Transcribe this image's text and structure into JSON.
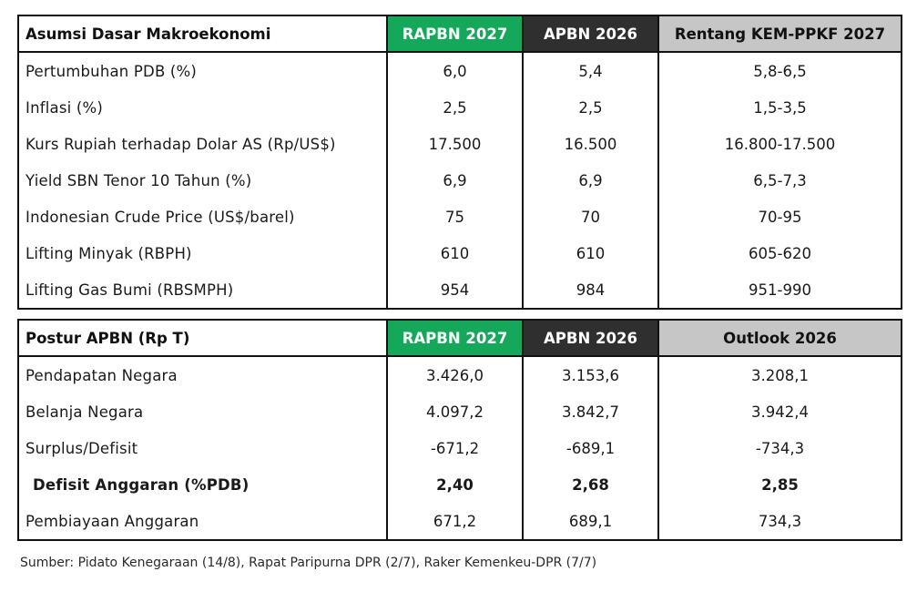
{
  "macro_assumptions": {
    "header": {
      "label": "Asumsi Dasar Makroekonomi",
      "col1": "RAPBN 2027",
      "col2": "APBN 2026",
      "col3": "Rentang KEM-PPKF 2027"
    },
    "rows": [
      {
        "label": "Pertumbuhan PDB (%)",
        "rapbn2027": "6,0",
        "apbn2026": "5,4",
        "range2027": "5,8-6,5"
      },
      {
        "label": "Inflasi (%)",
        "rapbn2027": "2,5",
        "apbn2026": "2,5",
        "range2027": "1,5-3,5"
      },
      {
        "label": "Kurs Rupiah terhadap Dolar AS (Rp/US$)",
        "rapbn2027": "17.500",
        "apbn2026": "16.500",
        "range2027": "16.800-17.500"
      },
      {
        "label": "Yield SBN Tenor 10 Tahun (%)",
        "rapbn2027": "6,9",
        "apbn2026": "6,9",
        "range2027": "6,5-7,3"
      },
      {
        "label": "Indonesian Crude Price (US$/barel)",
        "rapbn2027": "75",
        "apbn2026": "70",
        "range2027": "70-95"
      },
      {
        "label": "Lifting Minyak (RBPH)",
        "rapbn2027": "610",
        "apbn2026": "610",
        "range2027": "605-620"
      },
      {
        "label": "Lifting Gas Bumi (RBSMPH)",
        "rapbn2027": "954",
        "apbn2026": "984",
        "range2027": "951-990"
      }
    ]
  },
  "budget_posture": {
    "header": {
      "label": "Postur APBN (Rp T)",
      "col1": "RAPBN 2027",
      "col2": "APBN 2026",
      "col3": "Outlook 2026"
    },
    "rows": [
      {
        "label": "Pendapatan Negara",
        "rapbn2027": "3.426,0",
        "apbn2026": "3.153,6",
        "outlook2026": "3.208,1"
      },
      {
        "label": "Belanja Negara",
        "rapbn2027": "4.097,2",
        "apbn2026": "3.842,7",
        "outlook2026": "3.942,4"
      },
      {
        "label": "Surplus/Defisit",
        "rapbn2027": "-671,2",
        "apbn2026": "-689,1",
        "outlook2026": "-734,3"
      },
      {
        "label": "Defisit Anggaran (%PDB)",
        "rapbn2027": "2,40",
        "apbn2026": "2,68",
        "outlook2026": "2,85"
      },
      {
        "label": "Pembiayaan Anggaran",
        "rapbn2027": "671,2",
        "apbn2026": "689,1",
        "outlook2026": "734,3"
      }
    ]
  },
  "source": "Sumber: Pidato Kenegaraan (14/8), Rapat Paripurna DPR (2/7), Raker Kemenkeu-DPR (7/7)",
  "colors": {
    "rapbn_header": "#16a85a",
    "apbn_header": "#2f2f2f",
    "range_header": "#c6c6c6",
    "border": "#111111"
  }
}
